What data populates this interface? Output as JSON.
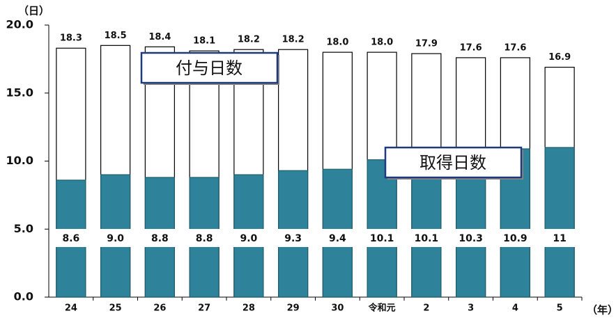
{
  "chart_data": {
    "type": "overlay-bar",
    "y_unit_label": "（日）",
    "x_unit_label": "（年）",
    "categories": [
      "24",
      "25",
      "26",
      "27",
      "28",
      "29",
      "30",
      "令和元",
      "2",
      "3",
      "4",
      "5"
    ],
    "series": [
      {
        "name": "付与日数",
        "color": "#ffffff",
        "values": [
          18.3,
          18.5,
          18.4,
          18.1,
          18.2,
          18.2,
          18.0,
          18.0,
          17.9,
          17.6,
          17.6,
          16.9
        ],
        "value_labels": [
          "18.3",
          "18.5",
          "18.4",
          "18.1",
          "18.2",
          "18.2",
          "18.0",
          "18.0",
          "17.9",
          "17.6",
          "17.6",
          "16.9"
        ]
      },
      {
        "name": "取得日数",
        "color": "#2e8299",
        "values": [
          8.6,
          9.0,
          8.8,
          8.8,
          9.0,
          9.3,
          9.4,
          10.1,
          10.1,
          10.3,
          10.9,
          11
        ],
        "value_labels": [
          "8.6",
          "9.0",
          "8.8",
          "8.8",
          "9.0",
          "9.3",
          "9.4",
          "10.1",
          "10.1",
          "10.3",
          "10.9",
          "11"
        ]
      }
    ],
    "ylim": [
      0,
      20
    ],
    "yticks": [
      {
        "value": 0,
        "label": "0.0"
      },
      {
        "value": 5,
        "label": "5.0"
      },
      {
        "value": 10,
        "label": "10.0"
      },
      {
        "value": 15,
        "label": "15.0"
      },
      {
        "value": 20,
        "label": "20.0"
      }
    ],
    "grid": false
  }
}
